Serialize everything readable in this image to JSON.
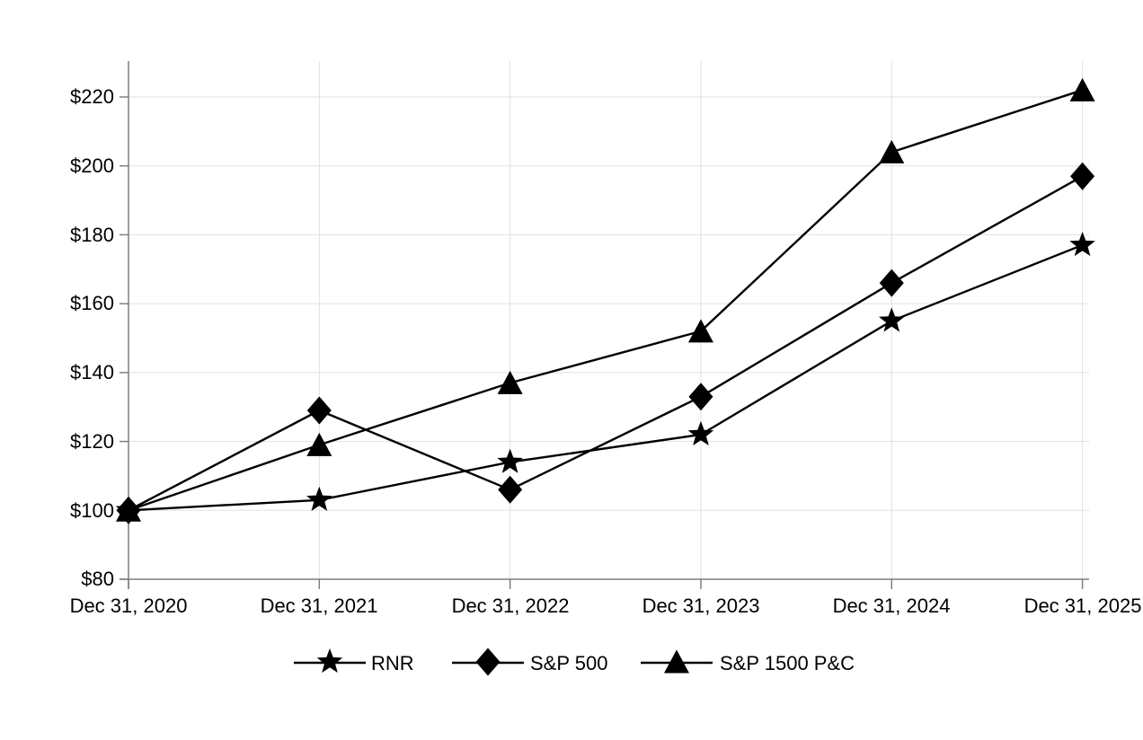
{
  "chart_data": {
    "type": "line",
    "title": "",
    "xlabel": "",
    "ylabel": "",
    "x_categories": [
      "Dec 31, 2020",
      "Dec 31, 2021",
      "Dec 31, 2022",
      "Dec 31, 2023",
      "Dec 31, 2024",
      "Dec 31, 2025"
    ],
    "y_tick_labels": [
      "$80",
      "$100",
      "$120",
      "$140",
      "$160",
      "$180",
      "$200",
      "$220"
    ],
    "ylim": [
      80,
      220
    ],
    "y_tick_step": 20,
    "grid": true,
    "legend_position": "bottom",
    "series": [
      {
        "name": "RNR",
        "marker": "star",
        "values": [
          100,
          103,
          114,
          122,
          155,
          177
        ]
      },
      {
        "name": "S&P 500",
        "marker": "diamond",
        "values": [
          100,
          129,
          106,
          133,
          166,
          197
        ]
      },
      {
        "name": "S&P 1500 P&C",
        "marker": "triangle",
        "values": [
          100,
          119,
          137,
          152,
          204,
          222
        ]
      }
    ],
    "colors": {
      "series": "#000000",
      "grid": "#e0e0e0",
      "axis": "#7f7f7f",
      "text": "#000000",
      "background": "#ffffff"
    }
  }
}
